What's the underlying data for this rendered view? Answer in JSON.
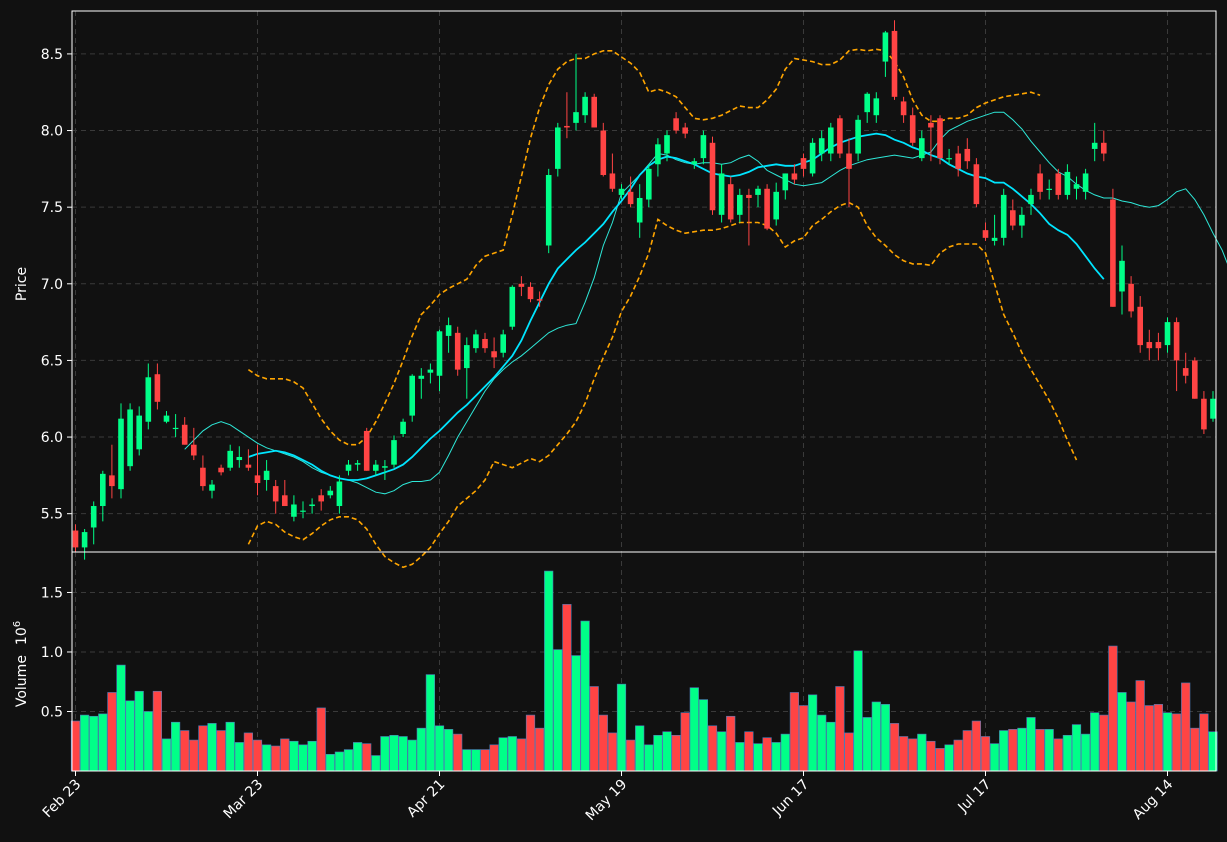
{
  "chart_data": [
    {
      "type": "candlestick",
      "panel": "price",
      "ylabel": "Price",
      "ylim": [
        5.25,
        8.78
      ],
      "yticks": [
        5.5,
        6.0,
        6.5,
        7.0,
        7.5,
        8.0,
        8.5
      ],
      "grid": true,
      "colors": {
        "up": "#00ff88",
        "down": "#ff4444",
        "background": "#111111",
        "grid": "#3a3a3a",
        "ma_fast": "#2ee8d8",
        "ma_slow": "#00e5ff",
        "bollinger": "#ffa500"
      },
      "series": [
        {
          "name": "OHLC",
          "style": "candles"
        },
        {
          "style": "line-thin",
          "values": [
            null,
            null,
            null,
            null,
            null,
            null,
            null,
            null,
            null,
            null,
            null,
            null,
            5.92,
            5.98,
            6.04,
            6.08,
            6.1,
            6.08,
            6.04,
            6.0,
            5.96,
            5.93,
            5.91,
            5.89,
            5.87,
            5.84,
            5.8,
            5.77,
            5.75,
            5.73,
            5.72,
            5.7,
            5.67,
            5.64,
            5.63,
            5.65,
            5.69,
            5.71,
            5.71,
            5.72,
            5.77,
            5.88,
            6.0,
            6.1,
            6.2,
            6.3,
            6.38,
            6.44,
            6.49,
            6.53,
            6.58,
            6.63,
            6.68,
            6.71,
            6.73,
            6.74,
            6.88,
            7.04,
            7.25,
            7.4,
            7.59,
            7.65,
            7.71,
            7.78,
            7.85,
            7.84,
            7.81,
            7.79,
            7.78,
            7.79,
            7.79,
            7.78,
            7.79,
            7.82,
            7.84,
            7.8,
            7.74,
            7.71,
            7.68,
            7.65,
            7.64,
            7.65,
            7.66,
            7.7,
            7.74,
            7.77,
            7.79,
            7.81,
            7.82,
            7.83,
            7.84,
            7.83,
            7.82,
            7.84,
            7.86,
            7.94,
            8.0,
            8.03,
            8.06,
            8.08,
            8.1,
            8.12,
            8.12,
            8.07,
            8.01,
            7.93,
            7.86,
            7.79,
            7.73,
            7.7,
            7.65,
            7.61,
            7.58,
            7.56,
            7.56,
            7.54,
            7.53,
            7.51,
            7.5,
            7.51,
            7.55,
            7.6,
            7.62,
            7.55,
            7.45,
            7.33,
            7.22,
            7.07,
            6.86,
            6.66,
            6.55,
            6.49
          ]
        },
        {
          "style": "line-thick",
          "values": [
            null,
            null,
            null,
            null,
            null,
            null,
            null,
            null,
            null,
            null,
            null,
            null,
            null,
            null,
            null,
            null,
            null,
            null,
            null,
            5.87,
            5.89,
            5.9,
            5.91,
            5.9,
            5.88,
            5.85,
            5.82,
            5.78,
            5.75,
            5.73,
            5.72,
            5.72,
            5.73,
            5.75,
            5.77,
            5.79,
            5.82,
            5.87,
            5.93,
            5.99,
            6.04,
            6.1,
            6.16,
            6.21,
            6.27,
            6.33,
            6.39,
            6.46,
            6.53,
            6.63,
            6.76,
            6.88,
            7.0,
            7.1,
            7.16,
            7.22,
            7.27,
            7.33,
            7.39,
            7.47,
            7.54,
            7.62,
            7.71,
            7.77,
            7.81,
            7.83,
            7.82,
            7.8,
            7.78,
            7.75,
            7.72,
            7.71,
            7.7,
            7.71,
            7.73,
            7.76,
            7.77,
            7.78,
            7.77,
            7.77,
            7.79,
            7.81,
            7.85,
            7.89,
            7.92,
            7.94,
            7.96,
            7.97,
            7.98,
            7.97,
            7.94,
            7.92,
            7.89,
            7.87,
            7.84,
            7.82,
            7.78,
            7.75,
            7.72,
            7.7,
            7.69,
            7.66,
            7.66,
            7.62,
            7.57,
            7.52,
            7.46,
            7.39,
            7.35,
            7.32,
            7.26,
            7.18,
            7.1,
            7.03
          ]
        },
        {
          "style": "dashed",
          "values": [
            null,
            null,
            null,
            null,
            null,
            null,
            null,
            null,
            null,
            null,
            null,
            null,
            null,
            null,
            null,
            null,
            null,
            null,
            null,
            6.44,
            6.4,
            6.38,
            6.38,
            6.38,
            6.36,
            6.32,
            6.22,
            6.12,
            6.04,
            5.98,
            5.95,
            5.95,
            6.0,
            6.1,
            6.22,
            6.35,
            6.5,
            6.66,
            6.8,
            6.86,
            6.93,
            6.97,
            7.0,
            7.03,
            7.12,
            7.18,
            7.2,
            7.22,
            7.45,
            7.7,
            7.95,
            8.15,
            8.3,
            8.4,
            8.45,
            8.47,
            8.47,
            8.5,
            8.52,
            8.52,
            8.48,
            8.44,
            8.38,
            8.25,
            8.27,
            8.25,
            8.22,
            8.15,
            8.08,
            8.07,
            8.08,
            8.1,
            8.13,
            8.16,
            8.15,
            8.15,
            8.2,
            8.27,
            8.4,
            8.47,
            8.46,
            8.45,
            8.43,
            8.43,
            8.46,
            8.52,
            8.53,
            8.52,
            8.53,
            8.52,
            8.45,
            8.35,
            8.2,
            8.1,
            8.06,
            8.06,
            8.08,
            8.08,
            8.1,
            8.15,
            8.18,
            8.2,
            8.22,
            8.23,
            8.24,
            8.25,
            8.23
          ]
        },
        {
          "style": "dashed",
          "values": [
            null,
            null,
            null,
            null,
            null,
            null,
            null,
            null,
            null,
            null,
            null,
            null,
            null,
            null,
            null,
            null,
            null,
            null,
            null,
            5.3,
            5.42,
            5.45,
            5.43,
            5.38,
            5.35,
            5.33,
            5.37,
            5.42,
            5.46,
            5.48,
            5.48,
            5.46,
            5.4,
            5.3,
            5.22,
            5.18,
            5.15,
            5.17,
            5.22,
            5.28,
            5.37,
            5.45,
            5.55,
            5.6,
            5.65,
            5.72,
            5.84,
            5.82,
            5.8,
            5.83,
            5.86,
            5.84,
            5.88,
            5.95,
            6.02,
            6.1,
            6.22,
            6.38,
            6.52,
            6.65,
            6.82,
            6.92,
            7.05,
            7.2,
            7.42,
            7.38,
            7.35,
            7.33,
            7.34,
            7.35,
            7.35,
            7.36,
            7.38,
            7.4,
            7.4,
            7.4,
            7.38,
            7.33,
            7.24,
            7.28,
            7.3,
            7.38,
            7.42,
            7.47,
            7.51,
            7.53,
            7.5,
            7.38,
            7.3,
            7.25,
            7.19,
            7.15,
            7.13,
            7.13,
            7.12,
            7.2,
            7.24,
            7.26,
            7.26,
            7.26,
            7.2,
            7.0,
            6.8,
            6.68,
            6.55,
            6.44,
            6.34,
            6.24,
            6.12,
            5.98,
            5.85
          ]
        }
      ]
    },
    {
      "type": "bar",
      "panel": "volume",
      "ylabel": "Volume",
      "ylabel_multiplier": "10",
      "ylabel_exponent": "6",
      "ylim": [
        0,
        1.84
      ],
      "yticks": [
        0.5,
        1.0,
        1.5
      ],
      "grid": true,
      "xticks": [
        "Feb 23",
        "Mar 23",
        "Apr 21",
        "May 19",
        "Jun 17",
        "Jul 17",
        "Aug 14"
      ]
    }
  ],
  "ohlcv": [
    [
      5.39,
      5.43,
      5.22,
      5.28,
      0.42
    ],
    [
      5.28,
      5.4,
      5.2,
      5.38,
      0.47
    ],
    [
      5.41,
      5.58,
      5.3,
      5.55,
      0.46
    ],
    [
      5.55,
      5.78,
      5.45,
      5.76,
      0.48
    ],
    [
      5.75,
      5.95,
      5.6,
      5.68,
      0.66
    ],
    [
      5.66,
      6.22,
      5.6,
      6.12,
      0.89
    ],
    [
      5.81,
      6.22,
      5.78,
      6.18,
      0.59
    ],
    [
      5.92,
      6.2,
      5.88,
      6.14,
      0.67
    ],
    [
      6.1,
      6.48,
      6.05,
      6.39,
      0.5
    ],
    [
      6.41,
      6.48,
      6.18,
      6.23,
      0.67
    ],
    [
      6.1,
      6.17,
      6.09,
      6.14,
      0.27
    ],
    [
      6.06,
      6.15,
      6.0,
      6.06,
      0.41
    ],
    [
      6.08,
      6.13,
      5.95,
      5.95,
      0.34
    ],
    [
      5.95,
      6.06,
      5.85,
      5.88,
      0.26
    ],
    [
      5.8,
      5.88,
      5.65,
      5.68,
      0.38
    ],
    [
      5.65,
      5.72,
      5.6,
      5.69,
      0.4
    ],
    [
      5.8,
      5.82,
      5.75,
      5.77,
      0.34
    ],
    [
      5.8,
      5.95,
      5.78,
      5.91,
      0.41
    ],
    [
      5.85,
      5.94,
      5.8,
      5.87,
      0.24
    ],
    [
      5.82,
      5.92,
      5.78,
      5.8,
      0.32
    ],
    [
      5.75,
      5.95,
      5.62,
      5.7,
      0.26
    ],
    [
      5.72,
      5.85,
      5.65,
      5.78,
      0.22
    ],
    [
      5.68,
      5.72,
      5.5,
      5.58,
      0.21
    ],
    [
      5.62,
      5.72,
      5.55,
      5.55,
      0.27
    ],
    [
      5.48,
      5.62,
      5.45,
      5.56,
      0.25
    ],
    [
      5.52,
      5.58,
      5.47,
      5.52,
      0.22
    ],
    [
      5.55,
      5.6,
      5.5,
      5.56,
      0.25
    ],
    [
      5.62,
      5.66,
      5.52,
      5.58,
      0.53
    ],
    [
      5.62,
      5.68,
      5.6,
      5.65,
      0.14
    ],
    [
      5.55,
      5.75,
      5.5,
      5.71,
      0.16
    ],
    [
      5.78,
      5.85,
      5.75,
      5.82,
      0.18
    ],
    [
      5.82,
      5.85,
      5.78,
      5.83,
      0.24
    ],
    [
      6.04,
      6.06,
      5.78,
      5.78,
      0.23
    ],
    [
      5.78,
      5.85,
      5.75,
      5.82,
      0.13
    ],
    [
      5.8,
      5.85,
      5.72,
      5.81,
      0.29
    ],
    [
      5.82,
      6.01,
      5.8,
      5.98,
      0.3
    ],
    [
      6.02,
      6.12,
      6.0,
      6.1,
      0.29
    ],
    [
      6.14,
      6.41,
      6.1,
      6.4,
      0.26
    ],
    [
      6.38,
      6.45,
      6.25,
      6.4,
      0.36
    ],
    [
      6.42,
      6.48,
      6.35,
      6.44,
      0.81
    ],
    [
      6.4,
      6.7,
      6.3,
      6.69,
      0.38
    ],
    [
      6.66,
      6.78,
      6.55,
      6.73,
      0.35
    ],
    [
      6.68,
      6.72,
      6.4,
      6.44,
      0.31
    ],
    [
      6.45,
      6.65,
      6.25,
      6.6,
      0.18
    ],
    [
      6.58,
      6.7,
      6.55,
      6.67,
      0.18
    ],
    [
      6.64,
      6.68,
      6.55,
      6.58,
      0.18
    ],
    [
      6.56,
      6.65,
      6.45,
      6.52,
      0.22
    ],
    [
      6.55,
      6.7,
      6.52,
      6.67,
      0.28
    ],
    [
      6.72,
      6.99,
      6.7,
      6.98,
      0.29
    ],
    [
      7.0,
      7.05,
      6.92,
      6.98,
      0.27
    ],
    [
      6.98,
      7.01,
      6.88,
      6.9,
      0.47
    ],
    [
      6.9,
      6.95,
      6.85,
      6.89,
      0.36
    ],
    [
      7.25,
      7.75,
      7.2,
      7.71,
      1.68
    ],
    [
      7.75,
      8.05,
      7.7,
      8.02,
      1.02
    ],
    [
      8.03,
      8.25,
      7.95,
      8.02,
      1.4
    ],
    [
      8.05,
      8.5,
      8.0,
      8.12,
      0.97
    ],
    [
      8.1,
      8.25,
      8.05,
      8.22,
      1.26
    ],
    [
      8.22,
      8.24,
      8.02,
      8.02,
      0.71
    ],
    [
      8.0,
      8.05,
      7.7,
      7.71,
      0.47
    ],
    [
      7.72,
      7.85,
      7.6,
      7.62,
      0.32
    ],
    [
      7.58,
      7.65,
      7.55,
      7.62,
      0.73
    ],
    [
      7.6,
      7.7,
      7.5,
      7.52,
      0.26
    ],
    [
      7.4,
      7.65,
      7.3,
      7.56,
      0.38
    ],
    [
      7.55,
      7.78,
      7.5,
      7.75,
      0.22
    ],
    [
      7.78,
      7.95,
      7.7,
      7.91,
      0.3
    ],
    [
      7.85,
      8.0,
      7.8,
      7.97,
      0.33
    ],
    [
      8.08,
      8.12,
      7.98,
      8.0,
      0.3
    ],
    [
      8.02,
      8.05,
      7.95,
      7.98,
      0.49
    ],
    [
      7.78,
      7.82,
      7.75,
      7.8,
      0.7
    ],
    [
      7.82,
      8.0,
      7.78,
      7.97,
      0.6
    ],
    [
      7.92,
      7.96,
      7.45,
      7.48,
      0.38
    ],
    [
      7.45,
      7.78,
      7.4,
      7.72,
      0.33
    ],
    [
      7.65,
      7.7,
      7.4,
      7.42,
      0.46
    ],
    [
      7.45,
      7.62,
      7.4,
      7.58,
      0.24
    ],
    [
      7.58,
      7.62,
      7.25,
      7.56,
      0.33
    ],
    [
      7.58,
      7.64,
      7.5,
      7.62,
      0.23
    ],
    [
      7.62,
      7.65,
      7.35,
      7.36,
      0.28
    ],
    [
      7.42,
      7.66,
      7.38,
      7.6,
      0.24
    ],
    [
      7.61,
      7.72,
      7.55,
      7.72,
      0.31
    ],
    [
      7.72,
      7.78,
      7.65,
      7.68,
      0.66
    ],
    [
      7.82,
      7.85,
      7.7,
      7.75,
      0.55
    ],
    [
      7.72,
      7.95,
      7.7,
      7.92,
      0.64
    ],
    [
      7.85,
      8.0,
      7.8,
      7.95,
      0.47
    ],
    [
      7.85,
      8.05,
      7.8,
      8.02,
      0.41
    ],
    [
      8.08,
      8.1,
      7.82,
      7.85,
      0.71
    ],
    [
      7.85,
      7.95,
      7.5,
      7.75,
      0.32
    ],
    [
      7.85,
      8.1,
      7.8,
      8.07,
      1.01
    ],
    [
      8.12,
      8.25,
      8.05,
      8.24,
      0.45
    ],
    [
      8.1,
      8.25,
      8.05,
      8.21,
      0.58
    ],
    [
      8.45,
      8.65,
      8.35,
      8.64,
      0.56
    ],
    [
      8.65,
      8.72,
      8.2,
      8.22,
      0.4
    ],
    [
      8.19,
      8.22,
      8.05,
      8.1,
      0.29
    ],
    [
      8.1,
      8.15,
      7.9,
      7.92,
      0.27
    ],
    [
      7.82,
      8.0,
      7.8,
      7.95,
      0.31
    ],
    [
      8.05,
      8.1,
      7.8,
      8.02,
      0.25
    ],
    [
      8.08,
      8.1,
      7.78,
      7.82,
      0.19
    ],
    [
      7.82,
      7.88,
      7.78,
      7.82,
      0.22
    ],
    [
      7.85,
      7.9,
      7.7,
      7.75,
      0.26
    ],
    [
      7.88,
      7.95,
      7.75,
      7.8,
      0.34
    ],
    [
      7.78,
      7.82,
      7.5,
      7.52,
      0.42
    ],
    [
      7.35,
      7.4,
      7.28,
      7.3,
      0.29
    ],
    [
      7.28,
      7.45,
      7.25,
      7.3,
      0.23
    ],
    [
      7.3,
      7.62,
      7.25,
      7.58,
      0.34
    ],
    [
      7.48,
      7.55,
      7.35,
      7.38,
      0.35
    ],
    [
      7.38,
      7.5,
      7.3,
      7.45,
      0.36
    ],
    [
      7.52,
      7.62,
      7.45,
      7.58,
      0.45
    ],
    [
      7.72,
      7.78,
      7.55,
      7.6,
      0.35
    ],
    [
      7.62,
      7.68,
      7.55,
      7.62,
      0.35
    ],
    [
      7.72,
      7.75,
      7.55,
      7.58,
      0.27
    ],
    [
      7.58,
      7.78,
      7.55,
      7.73,
      0.3
    ],
    [
      7.62,
      7.7,
      7.55,
      7.65,
      0.39
    ],
    [
      7.6,
      7.75,
      7.55,
      7.72,
      0.31
    ],
    [
      7.88,
      8.05,
      7.8,
      7.92,
      0.49
    ],
    [
      7.92,
      8.0,
      7.8,
      7.85,
      0.47
    ],
    [
      7.55,
      7.62,
      6.85,
      6.85,
      1.05
    ],
    [
      6.95,
      7.25,
      6.8,
      7.15,
      0.66
    ],
    [
      7.0,
      7.05,
      6.78,
      6.82,
      0.58
    ],
    [
      6.85,
      6.92,
      6.55,
      6.6,
      0.76
    ],
    [
      6.62,
      6.7,
      6.5,
      6.58,
      0.55
    ],
    [
      6.62,
      6.68,
      6.5,
      6.58,
      0.56
    ],
    [
      6.6,
      6.78,
      6.55,
      6.75,
      0.49
    ],
    [
      6.75,
      6.78,
      6.3,
      6.5,
      0.48
    ],
    [
      6.45,
      6.55,
      6.35,
      6.4,
      0.74
    ],
    [
      6.5,
      6.52,
      6.25,
      6.25,
      0.36
    ],
    [
      6.25,
      6.3,
      6.02,
      6.05,
      0.48
    ],
    [
      6.12,
      6.3,
      6.1,
      6.25,
      0.33
    ]
  ]
}
